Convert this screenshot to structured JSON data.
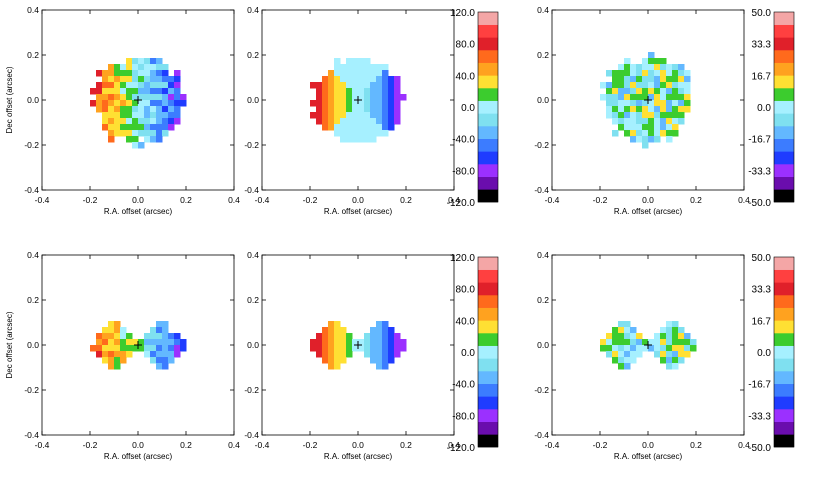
{
  "chart_data": {
    "type": "heatmap",
    "description_note": "Six velocity maps (2 rows x 3 columns): observed, model, residual",
    "axes": {
      "xlabel": "R.A. offset (arcsec)",
      "ylabel": "Dec offset (arcsec)",
      "xlim": [
        -0.4,
        0.4
      ],
      "ylim": [
        -0.4,
        0.4
      ],
      "xticks": [
        "-0.4",
        "-0.2",
        "0.0",
        "0.2",
        "0.4"
      ],
      "yticks": [
        "-0.4",
        "-0.2",
        "0.0",
        "0.2",
        "0.4"
      ]
    },
    "colorbars": [
      {
        "range": [
          -120,
          120
        ],
        "ticks": [
          "120.0",
          "80.0",
          "40.0",
          "0.0",
          "-40.0",
          "-80.0",
          "-120.0"
        ]
      },
      {
        "range": [
          -50,
          50
        ],
        "ticks": [
          "50.0",
          "33.3",
          "16.7",
          "0.0",
          "-16.7",
          "-33.3",
          "-50.0"
        ]
      }
    ],
    "palette": [
      "#000000",
      "#6a0dad",
      "#9b30ff",
      "#1f3cff",
      "#3c7cff",
      "#63b8ff",
      "#7fe0f0",
      "#a6f0ff",
      "#3ccc2e",
      "#ffe033",
      "#ffa21f",
      "#ff6a1c",
      "#e0202a",
      "#ff4040",
      "#f4a6a6"
    ],
    "panels": [
      {
        "row": 1,
        "col": 1,
        "kind": "observed",
        "mask": "disk",
        "colorbar": 0,
        "show_ylabel": true
      },
      {
        "row": 1,
        "col": 2,
        "kind": "model",
        "mask": "disk",
        "colorbar": 0,
        "show_ylabel": false
      },
      {
        "row": 1,
        "col": 3,
        "kind": "residual",
        "mask": "disk",
        "colorbar": 1,
        "show_ylabel": false
      },
      {
        "row": 2,
        "col": 1,
        "kind": "observed",
        "mask": "cone",
        "colorbar": 0,
        "show_ylabel": true
      },
      {
        "row": 2,
        "col": 2,
        "kind": "model",
        "mask": "cone",
        "colorbar": 0,
        "show_ylabel": false
      },
      {
        "row": 2,
        "col": 3,
        "kind": "residual",
        "mask": "cone",
        "colorbar": 1,
        "show_ylabel": false
      }
    ]
  }
}
